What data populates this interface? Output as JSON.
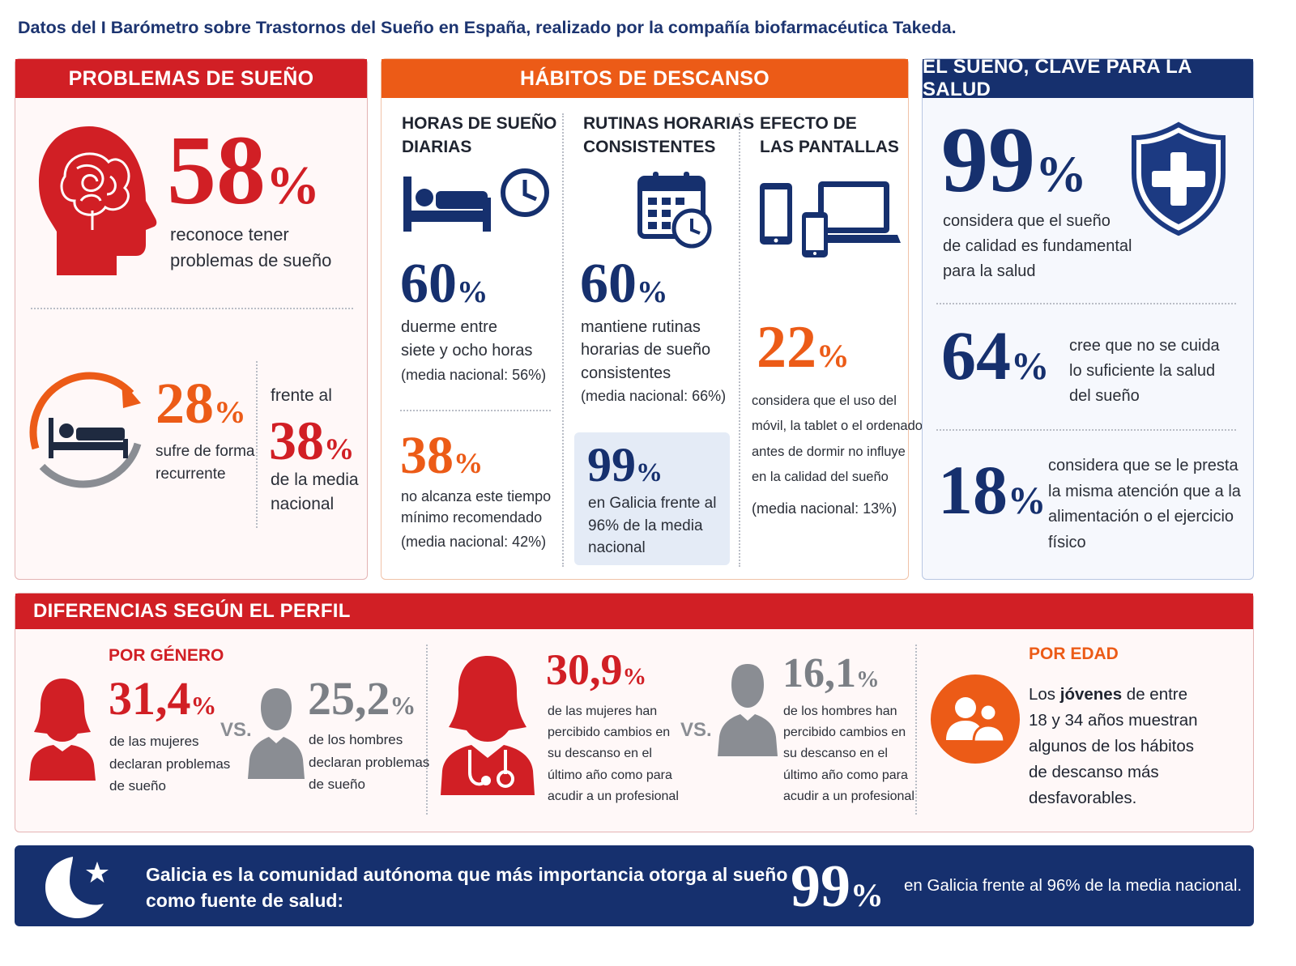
{
  "page_title": "Datos del I Barómetro sobre Trastornos del Sueño en España, realizado por la compañía biofarmacéutica Takeda.",
  "colors": {
    "red": "#d11f25",
    "orange": "#ec5b17",
    "navy": "#16306e",
    "grey": "#7b7f85"
  },
  "problemas": {
    "header": "PROBLEMAS DE SUEÑO",
    "stat1": {
      "value": "58",
      "unit": "%",
      "text1": "reconoce tener",
      "text2": "problemas de sueño",
      "icon": "head-brain-icon"
    },
    "stat2": {
      "value": "28",
      "unit": "%",
      "text1": "sufre de forma",
      "text2": "recurrente",
      "icon": "bed-cycle-icon"
    },
    "stat3": {
      "pre": "frente al",
      "value": "38",
      "unit": "%",
      "text1": "de la media",
      "text2": "nacional"
    }
  },
  "habitos": {
    "header": "HÁBITOS DE DESCANSO",
    "col1": {
      "title1": "HORAS DE SUEÑO",
      "title2": "DIARIAS",
      "icon": "bed-clock-icon",
      "s1": {
        "value": "60",
        "unit": "%",
        "l1": "duerme entre",
        "l2": "siete y ocho horas",
        "l3": "(media nacional: 56%)"
      },
      "s2": {
        "value": "38",
        "unit": "%",
        "l1": "no alcanza este tiempo",
        "l2": "mínimo recomendado",
        "l3": "(media nacional: 42%)"
      }
    },
    "col2": {
      "title1": "RUTINAS HORARIAS",
      "title2": "CONSISTENTES",
      "icon": "calendar-clock-icon",
      "s1": {
        "value": "60",
        "unit": "%",
        "l1": "mantiene rutinas",
        "l2": "horarias de sueño",
        "l3": "consistentes",
        "l4": "(media nacional: 66%)"
      },
      "s2": {
        "value": "99",
        "unit": "%",
        "l1": "en Galicia frente al",
        "l2": "96% de la media",
        "l3": "nacional"
      }
    },
    "col3": {
      "title1": "EFECTO DE",
      "title2": "LAS PANTALLAS",
      "icon": "devices-icon",
      "s1": {
        "value": "22",
        "unit": "%",
        "l1": "considera que el uso del",
        "l2": "móvil, la tablet o el ordenador",
        "l3": "antes de dormir no influye",
        "l4": "en la calidad del sueño",
        "l5": "(media nacional: 13%)"
      }
    }
  },
  "clave": {
    "header": "EL SUEÑO, CLAVE PARA LA SALUD",
    "s1": {
      "value": "99",
      "unit": "%",
      "l1": "considera que el sueño",
      "l2": "de calidad es fundamental",
      "l3": "para la salud",
      "icon": "shield-cross-icon"
    },
    "s2": {
      "value": "64",
      "unit": "%",
      "l1": "cree que no se cuida",
      "l2": "lo suficiente la salud",
      "l3": "del sueño"
    },
    "s3": {
      "value": "18",
      "unit": "%",
      "l1": "considera que se le presta",
      "l2": "la misma atención que a la",
      "l3": "alimentación o el ejercicio",
      "l4": "físico"
    }
  },
  "perfil": {
    "header": "DIFERENCIAS SEGÚN EL PERFIL",
    "genero": {
      "title": "POR GÉNERO",
      "women": {
        "value": "31,4",
        "unit": "%",
        "l1": "de las mujeres",
        "l2": "declaran problemas",
        "l3": "de sueño"
      },
      "vs": "VS.",
      "men": {
        "value": "25,2",
        "unit": "%",
        "l1": "de los hombres",
        "l2": "declaran problemas",
        "l3": "de sueño"
      }
    },
    "profesional": {
      "women": {
        "value": "30,9",
        "unit": "%",
        "l1": "de las mujeres han",
        "l2": "percibido cambios en",
        "l3": "su descanso en el",
        "l4": "último año como para",
        "l5": "acudir a un profesional"
      },
      "vs": "VS.",
      "men": {
        "value": "16,1",
        "unit": "%",
        "l1": "de los hombres han",
        "l2": "percibido cambios en",
        "l3": "su descanso en el",
        "l4": "último año como para",
        "l5": "acudir a un profesional"
      }
    },
    "edad": {
      "title": "POR EDAD",
      "l1a": "Los ",
      "l1b": "jóvenes",
      "l1c": " de entre",
      "l2": "18 y 34 años muestran",
      "l3": "algunos de los hábitos",
      "l4": "de descanso más",
      "l5": "desfavorables."
    }
  },
  "footer": {
    "l1": "Galicia es la comunidad autónoma que más importancia otorga al sueño",
    "l2": "como fuente de salud:",
    "value": "99",
    "unit": "%",
    "note": "en Galicia frente al 96% de la media nacional."
  }
}
